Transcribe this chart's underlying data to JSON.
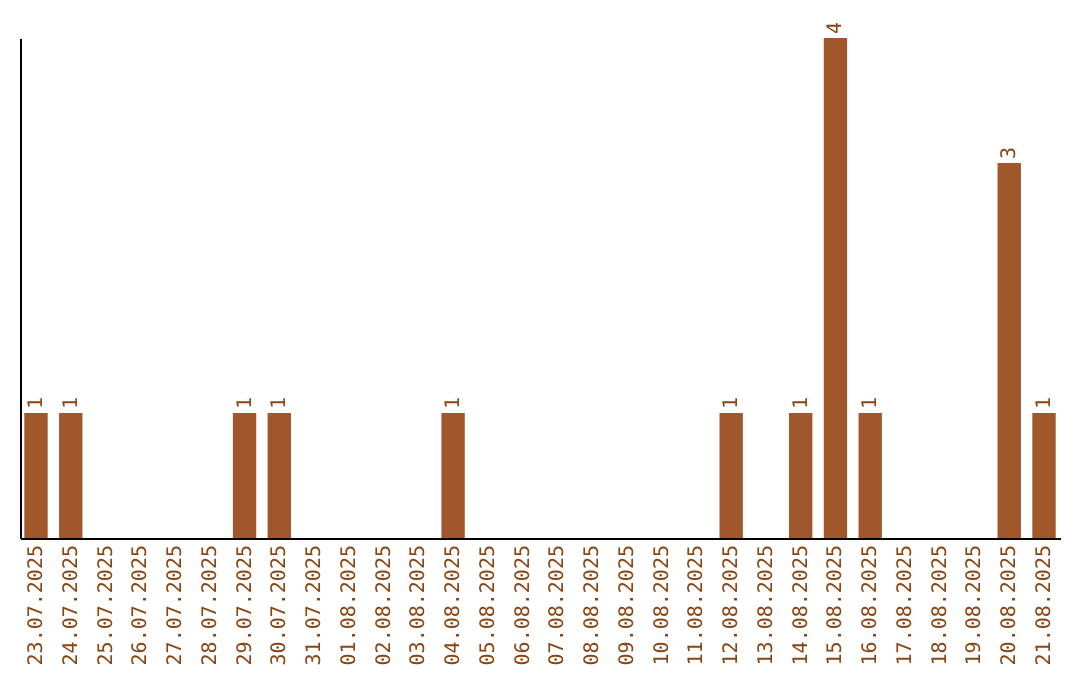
{
  "chart_data": {
    "type": "bar",
    "categories": [
      "23.07.2025",
      "24.07.2025",
      "25.07.2025",
      "26.07.2025",
      "27.07.2025",
      "28.07.2025",
      "29.07.2025",
      "30.07.2025",
      "31.07.2025",
      "01.08.2025",
      "02.08.2025",
      "03.08.2025",
      "04.08.2025",
      "05.08.2025",
      "06.08.2025",
      "07.08.2025",
      "08.08.2025",
      "09.08.2025",
      "10.08.2025",
      "11.08.2025",
      "12.08.2025",
      "13.08.2025",
      "14.08.2025",
      "15.08.2025",
      "16.08.2025",
      "17.08.2025",
      "18.08.2025",
      "19.08.2025",
      "20.08.2025",
      "21.08.2025"
    ],
    "values": [
      1,
      1,
      0,
      0,
      0,
      0,
      1,
      1,
      0,
      0,
      0,
      0,
      1,
      0,
      0,
      0,
      0,
      0,
      0,
      0,
      1,
      0,
      1,
      4,
      1,
      0,
      0,
      0,
      3,
      1
    ],
    "value_labels": [
      "1",
      "1",
      null,
      null,
      null,
      null,
      "1",
      "1",
      null,
      null,
      null,
      null,
      "1",
      null,
      null,
      null,
      null,
      null,
      null,
      null,
      "1",
      null,
      "1",
      "4",
      "1",
      null,
      null,
      null,
      "3",
      "1"
    ],
    "color": "#a0572b"
  }
}
